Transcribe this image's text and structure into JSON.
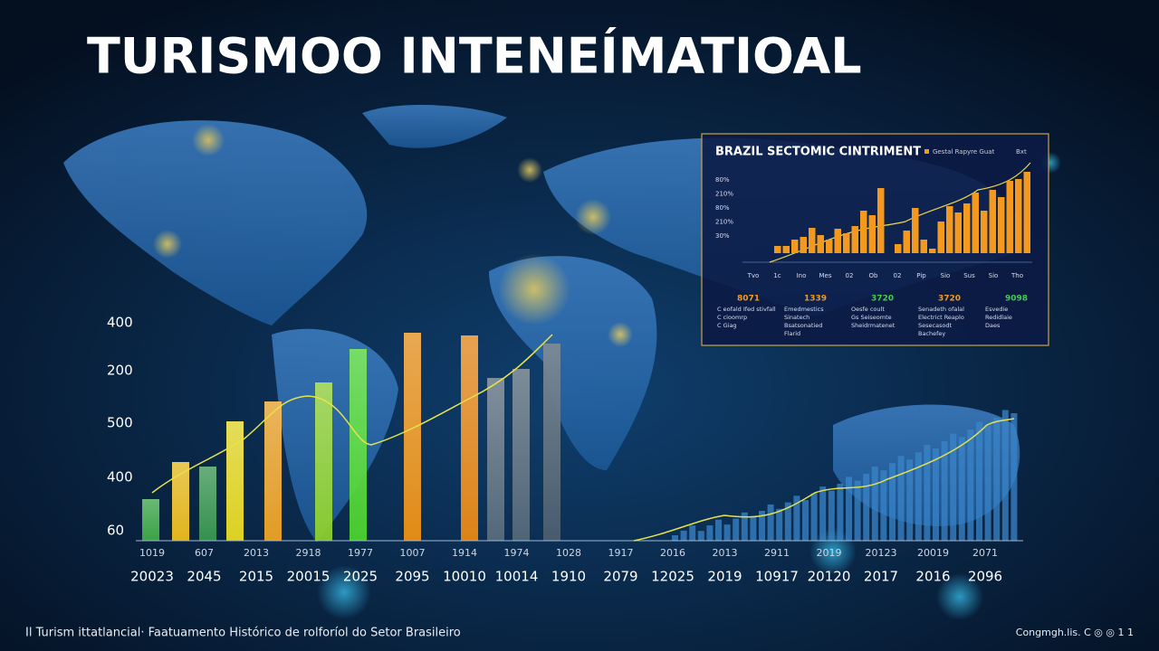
{
  "title": "TURISMOO INTENEÍMATIOAL",
  "main_chart": {
    "y_labels": [
      400,
      200,
      500,
      400,
      60
    ],
    "x_labels_top": [
      1019,
      607,
      2013,
      2918,
      1977,
      1007,
      1914,
      1974,
      1028,
      1917,
      2016,
      2013,
      2911,
      2019,
      20123,
      20019,
      2071
    ],
    "x_labels_bottom": [
      20023,
      2045,
      2015,
      20015,
      2025,
      2095,
      10010,
      10014,
      1910,
      2079,
      12025,
      2019,
      10917,
      20120,
      2017,
      2016,
      2096
    ]
  },
  "inset": {
    "title": "BRAZIL SECTOMIC CINTRIMENT",
    "legend": [
      "Gestal Rapyre Guat",
      "Bxt"
    ],
    "y_labels": [
      "80%",
      "210%",
      "80%",
      "210%",
      "30%"
    ],
    "x_labels": [
      "Tvo",
      "1c",
      "Ino",
      "Mes",
      "02",
      "Ob",
      "02",
      "Pip",
      "Sio",
      "Sus",
      "Sio",
      "Tho"
    ],
    "stats": [
      {
        "value": "8071",
        "lines": [
          "C eofald Ifed stivfall",
          "C cioomrp",
          "C Giag"
        ]
      },
      {
        "value": "1339",
        "lines": [
          "Emedmestics",
          "Sinatech",
          "Bsatsonatied",
          "Flarid"
        ]
      },
      {
        "value": "3720",
        "lines": [
          "Oesfe coult",
          "Gs Seiseomte",
          "Sheidrmatenet"
        ]
      },
      {
        "value": "3720",
        "lines": [
          "Senadeth ofalal",
          "Electrict Reaplo",
          "Sesecasodt",
          "Bachefey"
        ]
      },
      {
        "value": "9098",
        "lines": [
          "Esvedie",
          "Redidlaie",
          "Daes"
        ]
      }
    ]
  },
  "footer": {
    "left": "Il Turism ittatlancial· Faatuamento Histórico de rolforíol do Setor Brasileiro",
    "right": "Congmgh.lis.  C  ◎  ◎  1 1"
  }
}
